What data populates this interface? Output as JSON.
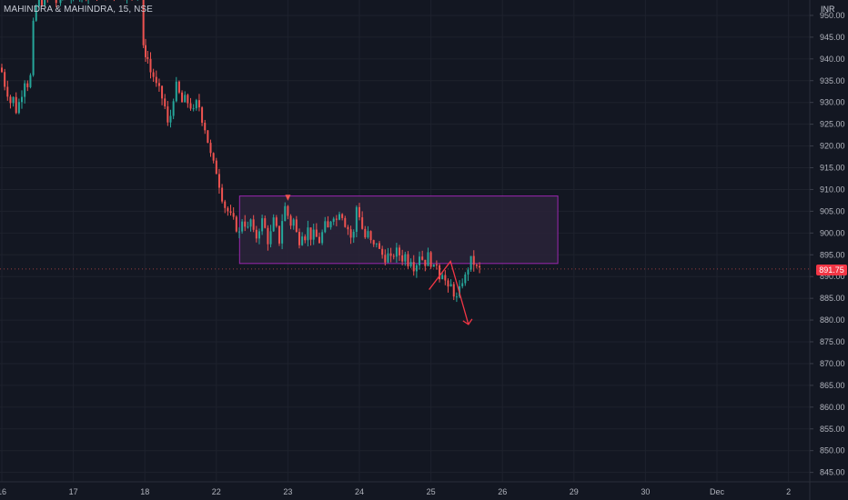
{
  "header": {
    "symbol": "MAHINDRA & MAHINDRA, 15, NSE",
    "currency": "INR"
  },
  "price_axis": {
    "last_price": "891.75",
    "last_price_color": "#f23645"
  },
  "colors": {
    "background": "#131722",
    "up_candle": "#26a69a",
    "down_candle": "#ef5350",
    "zone_fill": "#2a2338",
    "zone_border": "#9c27b0",
    "arrow": "#f23645",
    "axis_text": "#b2b5be",
    "grid": "#1e222d"
  },
  "chart_data": {
    "type": "candlestick",
    "title": "MAHINDRA & MAHINDRA, 15, NSE",
    "currency": "INR",
    "interval": "15",
    "ylim": [
      842,
      955
    ],
    "y_ticks": [
      950,
      945,
      940,
      935,
      930,
      925,
      920,
      915,
      910,
      905,
      900,
      895,
      890,
      885,
      880,
      875,
      870,
      865,
      860,
      855,
      850,
      845
    ],
    "x_ticks": [
      "16",
      "17",
      "18",
      "22",
      "23",
      "24",
      "25",
      "26",
      "29",
      "30",
      "Dec",
      "2"
    ],
    "last_price": 891.75,
    "rectangle_zone": {
      "price_top": 908.5,
      "price_bottom": 893,
      "start_day_index": 3.35,
      "end_day_index": 7.8
    },
    "signal_marker_day_index": 4.0,
    "projection_path": [
      {
        "day_index": 6.0,
        "price": 887
      },
      {
        "day_index": 6.3,
        "price": 893.5
      },
      {
        "day_index": 6.55,
        "price": 879
      }
    ],
    "candle_path": [
      [
        0.0,
        938
      ],
      [
        0.04,
        937
      ],
      [
        0.08,
        934
      ],
      [
        0.12,
        932
      ],
      [
        0.16,
        930
      ],
      [
        0.2,
        931
      ],
      [
        0.24,
        928
      ],
      [
        0.28,
        930
      ],
      [
        0.32,
        932
      ],
      [
        0.36,
        935
      ],
      [
        0.4,
        934
      ],
      [
        0.44,
        936
      ],
      [
        0.48,
        948
      ],
      [
        0.52,
        952
      ],
      [
        0.56,
        954
      ],
      [
        0.6,
        953
      ],
      [
        0.64,
        955
      ],
      [
        0.7,
        954
      ],
      [
        0.76,
        955
      ],
      [
        0.82,
        953
      ],
      [
        0.88,
        955
      ],
      [
        0.94,
        954
      ],
      [
        1.0,
        955
      ],
      [
        1.06,
        954
      ],
      [
        1.12,
        955
      ],
      [
        1.18,
        953
      ],
      [
        1.24,
        955
      ],
      [
        1.3,
        954
      ],
      [
        1.36,
        955
      ],
      [
        1.42,
        953
      ],
      [
        1.48,
        955
      ],
      [
        1.54,
        954
      ],
      [
        1.6,
        955
      ],
      [
        1.66,
        954
      ],
      [
        1.72,
        955
      ],
      [
        1.78,
        954
      ],
      [
        1.86,
        955
      ],
      [
        1.94,
        953
      ],
      [
        1.98,
        944
      ],
      [
        2.04,
        941
      ],
      [
        2.08,
        940
      ],
      [
        2.12,
        937
      ],
      [
        2.16,
        936
      ],
      [
        2.2,
        934
      ],
      [
        2.24,
        933
      ],
      [
        2.28,
        931
      ],
      [
        2.32,
        929
      ],
      [
        2.36,
        925
      ],
      [
        2.4,
        927
      ],
      [
        2.44,
        931
      ],
      [
        2.48,
        934
      ],
      [
        2.52,
        932
      ],
      [
        2.56,
        930
      ],
      [
        2.6,
        931
      ],
      [
        2.64,
        930
      ],
      [
        2.68,
        929
      ],
      [
        2.72,
        928
      ],
      [
        2.76,
        930
      ],
      [
        2.8,
        929
      ],
      [
        2.84,
        926
      ],
      [
        2.88,
        924
      ],
      [
        2.92,
        921
      ],
      [
        2.96,
        918
      ],
      [
        3.0,
        916
      ],
      [
        3.04,
        914
      ],
      [
        3.08,
        911
      ],
      [
        3.12,
        908
      ],
      [
        3.16,
        906
      ],
      [
        3.2,
        905
      ],
      [
        3.24,
        904
      ],
      [
        3.28,
        903
      ],
      [
        3.32,
        901
      ],
      [
        3.36,
        900
      ],
      [
        3.4,
        903
      ],
      [
        3.44,
        902
      ],
      [
        3.48,
        901
      ],
      [
        3.52,
        903
      ],
      [
        3.56,
        900
      ],
      [
        3.6,
        899
      ],
      [
        3.64,
        901
      ],
      [
        3.68,
        903
      ],
      [
        3.72,
        901
      ],
      [
        3.76,
        898
      ],
      [
        3.8,
        900
      ],
      [
        3.84,
        903
      ],
      [
        3.88,
        901
      ],
      [
        3.92,
        898
      ],
      [
        3.96,
        903
      ],
      [
        4.0,
        906
      ],
      [
        4.04,
        904
      ],
      [
        4.08,
        902
      ],
      [
        4.12,
        903
      ],
      [
        4.16,
        900
      ],
      [
        4.2,
        898
      ],
      [
        4.24,
        900
      ],
      [
        4.28,
        899
      ],
      [
        4.32,
        901
      ],
      [
        4.36,
        899
      ],
      [
        4.4,
        900
      ],
      [
        4.44,
        899
      ],
      [
        4.48,
        898
      ],
      [
        4.52,
        900
      ],
      [
        4.56,
        902
      ],
      [
        4.6,
        901
      ],
      [
        4.64,
        903
      ],
      [
        4.68,
        904
      ],
      [
        4.72,
        903
      ],
      [
        4.76,
        905
      ],
      [
        4.8,
        904
      ],
      [
        4.84,
        902
      ],
      [
        4.88,
        901
      ],
      [
        4.92,
        899
      ],
      [
        4.96,
        900
      ],
      [
        5.0,
        906
      ],
      [
        5.04,
        904
      ],
      [
        5.08,
        901
      ],
      [
        5.12,
        899
      ],
      [
        5.16,
        900
      ],
      [
        5.2,
        898
      ],
      [
        5.24,
        897
      ],
      [
        5.28,
        898
      ],
      [
        5.32,
        896
      ],
      [
        5.36,
        895
      ],
      [
        5.4,
        894
      ],
      [
        5.44,
        895
      ],
      [
        5.48,
        894
      ],
      [
        5.52,
        895
      ],
      [
        5.56,
        896
      ],
      [
        5.6,
        895
      ],
      [
        5.64,
        894
      ],
      [
        5.68,
        895
      ],
      [
        5.72,
        893
      ],
      [
        5.76,
        894
      ],
      [
        5.8,
        892
      ],
      [
        5.84,
        893
      ],
      [
        5.88,
        895
      ],
      [
        5.92,
        894
      ],
      [
        5.96,
        893
      ],
      [
        6.0,
        895
      ],
      [
        6.04,
        893
      ],
      [
        6.08,
        892
      ],
      [
        6.12,
        893
      ],
      [
        6.16,
        890
      ],
      [
        6.2,
        891
      ],
      [
        6.24,
        889
      ],
      [
        6.28,
        887
      ],
      [
        6.32,
        888
      ],
      [
        6.36,
        886
      ],
      [
        6.4,
        885
      ],
      [
        6.44,
        887
      ],
      [
        6.48,
        889
      ],
      [
        6.52,
        890
      ],
      [
        6.56,
        892
      ],
      [
        6.6,
        894
      ],
      [
        6.64,
        893
      ],
      [
        6.68,
        892
      ],
      [
        6.72,
        891.75
      ]
    ]
  }
}
